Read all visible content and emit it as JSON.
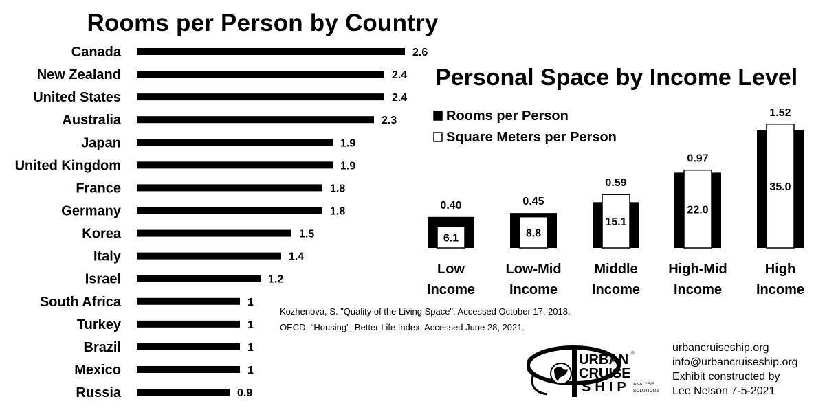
{
  "chart_data": [
    {
      "type": "bar",
      "orientation": "horizontal",
      "title": "Rooms per Person by Country",
      "categories": [
        "Canada",
        "New Zealand",
        "United States",
        "Australia",
        "Japan",
        "United Kingdom",
        "France",
        "Germany",
        "Korea",
        "Italy",
        "Israel",
        "South Africa",
        "Turkey",
        "Brazil",
        "Mexico",
        "Russia"
      ],
      "values": [
        2.6,
        2.4,
        2.4,
        2.3,
        1.9,
        1.9,
        1.8,
        1.8,
        1.5,
        1.4,
        1.2,
        1,
        1,
        1,
        1,
        0.9
      ],
      "value_labels": [
        "2.6",
        "2.4",
        "2.4",
        "2.3",
        "1.9",
        "1.9",
        "1.8",
        "1.8",
        "1.5",
        "1.4",
        "1.2",
        "1",
        "1",
        "1",
        "1",
        "0.9"
      ],
      "grid": false,
      "bar_color": "#000000"
    },
    {
      "type": "bar",
      "title": "Personal Space by Income Level",
      "legend_position": "top-left",
      "categories": [
        [
          "Low",
          "Income"
        ],
        [
          "Low-Mid",
          "Income"
        ],
        [
          "Middle",
          "Income"
        ],
        [
          "High-Mid",
          "Income"
        ],
        [
          "High",
          "Income"
        ]
      ],
      "series": [
        {
          "name": "Rooms per Person",
          "color": "#000000",
          "values": [
            0.4,
            0.45,
            0.59,
            0.97,
            1.52
          ],
          "labels": [
            "0.40",
            "0.45",
            "0.59",
            "0.97",
            "1.52"
          ]
        },
        {
          "name": "Square Meters per Person",
          "color": "#ffffff",
          "values": [
            6.1,
            8.8,
            15.1,
            22.0,
            35.0
          ],
          "labels": [
            "6.1",
            "8.8",
            "15.1",
            "22.0",
            "35.0"
          ]
        }
      ],
      "grid": false
    }
  ],
  "sources": [
    "Kozhenova, S. \"Quality of the Living Space\". Accessed October 17, 2018.",
    "OECD. \"Housing\". Better Life Index. Accessed June 28, 2021."
  ],
  "credits": [
    "urbancruiseship.org",
    "info@urbancruiseship.org",
    "Exhibit constructed by",
    "Lee Nelson 7-5-2021"
  ],
  "logo": {
    "line1": "URBAN",
    "line2": "CRUISE",
    "line3": "SHIP",
    "tagline_1": "ANALYSIS",
    "tagline_2": "SOLUTIONS",
    "registered": "®"
  }
}
